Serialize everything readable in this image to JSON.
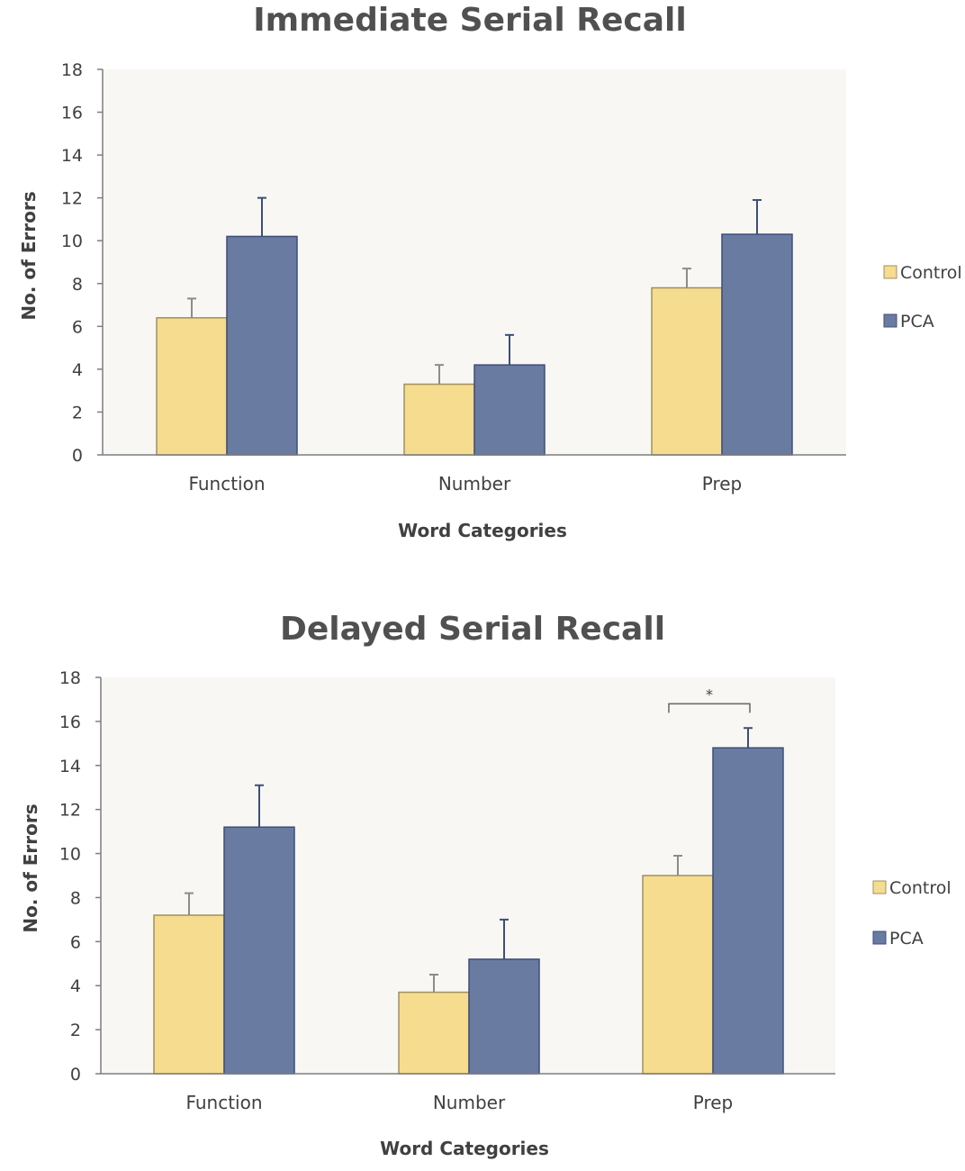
{
  "colors": {
    "control": "#F5DC8F",
    "control_stroke": "#A09060",
    "pca": "#6A7BA2",
    "pca_stroke": "#3E4E78",
    "plot_bg": "#F8F7F4",
    "axis": "#7F7F7F",
    "error_bar": "#8A8A8A"
  },
  "chart_data": [
    {
      "type": "bar",
      "title": "Immediate Serial Recall",
      "xlabel": "Word Categories",
      "ylabel": "No. of Errors",
      "ylim": [
        0,
        18
      ],
      "yticks": [
        "0",
        "2",
        "4",
        "6",
        "8",
        "10",
        "12",
        "14",
        "16",
        "18"
      ],
      "categories": [
        "Function",
        "Number",
        "Prep"
      ],
      "legend_position": "right",
      "series": [
        {
          "name": "Control",
          "values": [
            6.4,
            3.3,
            7.8
          ],
          "errors": [
            0.9,
            0.9,
            0.9
          ]
        },
        {
          "name": "PCA",
          "values": [
            10.2,
            4.2,
            10.3
          ],
          "errors": [
            1.8,
            1.4,
            1.6
          ]
        }
      ],
      "significance": []
    },
    {
      "type": "bar",
      "title": "Delayed Serial Recall",
      "xlabel": "Word Categories",
      "ylabel": "No. of Errors",
      "ylim": [
        0,
        18
      ],
      "yticks": [
        "0",
        "2",
        "4",
        "6",
        "8",
        "10",
        "12",
        "14",
        "16",
        "18"
      ],
      "categories": [
        "Function",
        "Number",
        "Prep"
      ],
      "legend_position": "right",
      "series": [
        {
          "name": "Control",
          "values": [
            7.2,
            3.7,
            9.0
          ],
          "errors": [
            1.0,
            0.8,
            0.9
          ]
        },
        {
          "name": "PCA",
          "values": [
            11.2,
            5.2,
            14.8
          ],
          "errors": [
            1.9,
            1.8,
            0.9
          ]
        }
      ],
      "significance": [
        {
          "category": "Prep",
          "label": "*",
          "y": 16.8
        }
      ]
    }
  ]
}
